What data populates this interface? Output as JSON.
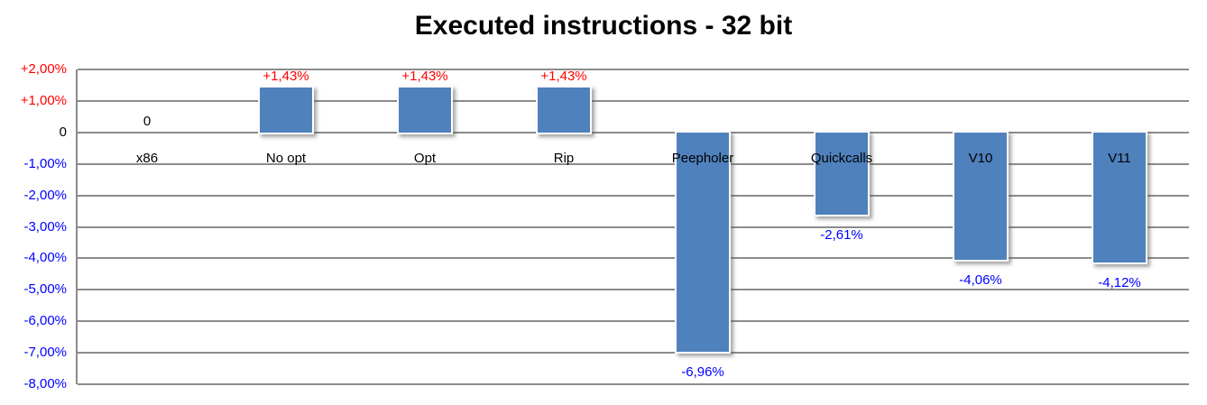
{
  "chart_data": {
    "type": "bar",
    "title": "Executed instructions - 32 bit",
    "categories": [
      "x86",
      "No opt",
      "Opt",
      "Rip",
      "Peepholer",
      "Quickcalls",
      "V10",
      "V11"
    ],
    "values": [
      0,
      1.43,
      1.43,
      1.43,
      -6.96,
      -2.61,
      -4.06,
      -4.12
    ],
    "value_labels": [
      "0",
      "+1,43%",
      "+1,43%",
      "+1,43%",
      "-6,96%",
      "-2,61%",
      "-4,06%",
      "-4,12%"
    ],
    "xlabel": "",
    "ylabel": "",
    "ylim": [
      -8,
      2
    ],
    "grid": true,
    "legend": false,
    "y_ticks": [
      {
        "label": "+2,00%",
        "value": 2
      },
      {
        "label": "+1,00%",
        "value": 1
      },
      {
        "label": "0",
        "value": 0
      },
      {
        "label": "-1,00%",
        "value": -1
      },
      {
        "label": "-2,00%",
        "value": -2
      },
      {
        "label": "-3,00%",
        "value": -3
      },
      {
        "label": "-4,00%",
        "value": -4
      },
      {
        "label": "-5,00%",
        "value": -5
      },
      {
        "label": "-6,00%",
        "value": -6
      },
      {
        "label": "-7,00%",
        "value": -7
      },
      {
        "label": "-8,00%",
        "value": -8
      }
    ]
  },
  "colors": {
    "bar": "#4f81bd",
    "positive_label": "#ff0000",
    "negative_label": "#0000ff",
    "zero_label": "#000000",
    "category_label": "#000000",
    "gridline": "#8c8c8c",
    "title": "#000000",
    "background": "#ffffff"
  }
}
